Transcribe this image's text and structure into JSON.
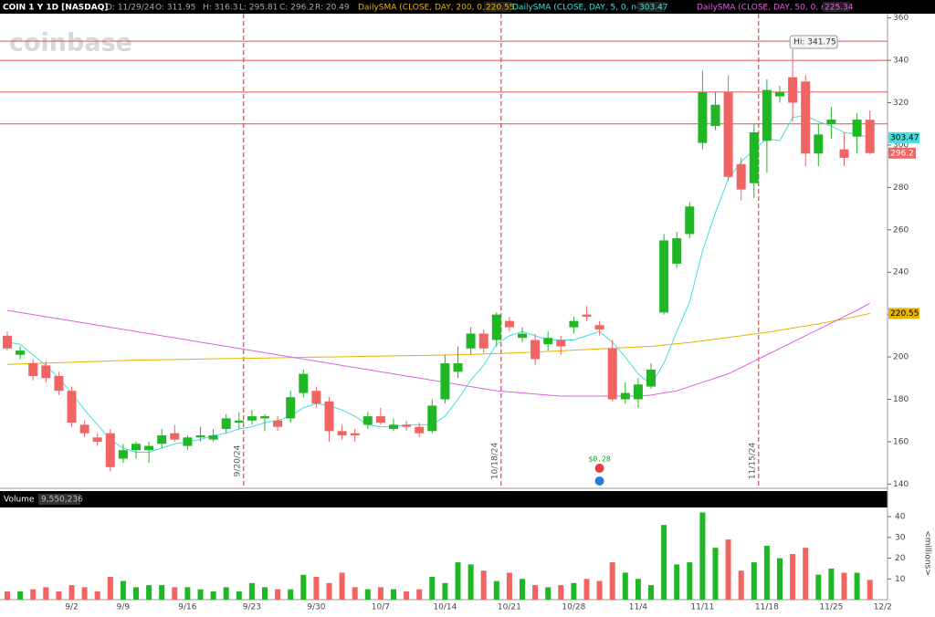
{
  "header": {
    "symbol": "COIN 1 Y 1D [NASDAQ]",
    "date": "D: 11/29/24",
    "open": "O: 311.95",
    "high": "H: 316.3",
    "low": "L: 295.81",
    "close": "C: 296.2",
    "range": "R: 20.49"
  },
  "watermark": "coinbase",
  "chart_data": {
    "type": "candlestick",
    "categories": [
      null,
      null,
      null,
      null,
      null,
      "9/2",
      null,
      null,
      null,
      "9/9",
      null,
      null,
      null,
      null,
      "9/16",
      null,
      null,
      null,
      null,
      "9/23",
      null,
      null,
      null,
      null,
      "9/30",
      null,
      null,
      null,
      null,
      "10/7",
      null,
      null,
      null,
      null,
      "10/14",
      null,
      null,
      null,
      null,
      "10/21",
      null,
      null,
      null,
      null,
      "10/28",
      null,
      null,
      null,
      null,
      "11/4",
      null,
      null,
      null,
      null,
      "11/11",
      null,
      null,
      null,
      null,
      "11/18",
      null,
      null,
      null,
      null,
      "11/25",
      null,
      null,
      null,
      "12/2"
    ],
    "open": [
      210,
      201,
      197,
      196,
      191,
      184,
      168,
      162,
      164,
      152,
      156,
      156,
      159,
      164,
      158,
      162,
      161,
      166,
      169,
      170,
      171,
      170,
      171,
      183,
      184,
      179,
      165,
      164,
      168,
      172,
      166,
      168,
      167,
      165,
      180,
      193,
      204,
      211,
      208,
      217,
      209,
      208,
      206,
      208,
      214,
      220,
      215,
      204,
      180,
      180,
      186,
      221,
      244,
      258,
      301,
      309,
      325,
      291,
      282,
      302,
      323,
      332,
      330,
      296,
      310,
      298,
      304,
      311.95,
      null
    ],
    "high": [
      212,
      205,
      199,
      198,
      193,
      186,
      170,
      164,
      166,
      159,
      160,
      160,
      166,
      168,
      163,
      167,
      166,
      173,
      174,
      175,
      173,
      172,
      184,
      194,
      186,
      181,
      168,
      166,
      174,
      176,
      171,
      170,
      169,
      180,
      201,
      205,
      214,
      213,
      221,
      219,
      214,
      211,
      212,
      210,
      219,
      224,
      217,
      208,
      188,
      190,
      197,
      258,
      259,
      273,
      335,
      325,
      333,
      294,
      310,
      331,
      328,
      341.75,
      333,
      310,
      318,
      306,
      315,
      316.3,
      null
    ],
    "low": [
      203,
      199,
      189,
      188,
      182,
      167,
      162,
      158,
      146,
      150,
      152,
      150,
      157,
      160,
      156,
      160,
      160,
      164,
      166,
      168,
      165,
      165,
      169,
      181,
      176,
      160,
      161,
      160,
      166,
      168,
      165,
      165,
      162,
      164,
      178,
      190,
      201,
      202,
      205,
      212,
      207,
      196,
      203,
      201,
      211,
      217,
      210,
      179,
      178,
      176,
      185,
      220,
      242,
      256,
      298,
      307,
      283,
      274,
      275,
      287,
      320,
      311,
      290,
      290,
      303,
      290,
      296,
      295.81,
      null
    ],
    "close": [
      204,
      203,
      191,
      190,
      184,
      169,
      164,
      160,
      148,
      156,
      159,
      158,
      163,
      161,
      162,
      163,
      163,
      171,
      170,
      172,
      172,
      167,
      181,
      192,
      178,
      165,
      163,
      163,
      172,
      169,
      168,
      167,
      164,
      177,
      197,
      197,
      211,
      204,
      220,
      214,
      211,
      199,
      209,
      205,
      217,
      219,
      213,
      180,
      183,
      187,
      194,
      255,
      256,
      271,
      325,
      319,
      285,
      279,
      306,
      326,
      325,
      320,
      296,
      305,
      312,
      294,
      312,
      296.2,
      null
    ],
    "up_color": "#1fb824",
    "down_color": "#f06464",
    "ylim": [
      138,
      362
    ],
    "yticks": [
      140,
      160,
      180,
      200,
      220,
      240,
      260,
      280,
      300,
      320,
      340,
      360
    ],
    "series": [
      {
        "name": "DailySMA (CLOSE, DAY, 200, 0, no)",
        "color": "#e8b400",
        "values": [
          196.5,
          196.7,
          196.9,
          197.1,
          197.3,
          197.5,
          197.7,
          197.9,
          198.1,
          198.3,
          198.5,
          198.6,
          198.7,
          198.8,
          198.9,
          199.0,
          199.1,
          199.2,
          199.3,
          199.4,
          199.5,
          199.6,
          199.7,
          199.8,
          199.9,
          200.0,
          200.1,
          200.2,
          200.3,
          200.4,
          200.5,
          200.6,
          200.7,
          200.8,
          200.9,
          201.0,
          201.2,
          201.4,
          201.6,
          201.8,
          202.0,
          202.3,
          202.6,
          202.9,
          203.2,
          203.5,
          203.8,
          204.1,
          204.4,
          204.7,
          205.0,
          205.6,
          206.2,
          206.8,
          207.6,
          208.4,
          209.2,
          210.0,
          210.8,
          211.6,
          212.6,
          213.6,
          214.6,
          215.6,
          216.8,
          217.9,
          219.2,
          220.55,
          null
        ]
      },
      {
        "name": "DailySMA (CLOSE, DAY, 5, 0, no)",
        "color": "#45dede",
        "values": [
          207,
          206,
          201,
          196,
          190,
          183,
          175,
          168,
          161,
          157,
          155,
          155,
          157,
          159,
          160,
          161,
          163,
          164,
          166,
          167,
          169,
          170,
          172,
          176,
          178,
          177,
          175,
          172,
          168,
          167,
          167,
          168,
          168,
          168,
          172,
          180,
          189,
          196,
          206,
          210,
          212,
          210,
          208,
          208,
          208,
          210,
          212,
          207,
          200,
          192,
          187,
          197,
          212,
          226,
          250,
          268,
          284,
          292,
          298,
          303,
          302,
          313,
          314,
          311,
          309,
          306,
          305,
          303.47,
          null
        ]
      },
      {
        "name": "DailySMA (CLOSE, DAY, 50, 0, no)",
        "color": "#e060e0",
        "values": [
          222,
          221,
          220,
          219,
          218,
          217,
          216,
          215,
          214,
          213,
          212,
          211,
          210,
          209,
          208,
          207,
          206,
          205,
          204,
          203,
          202,
          201,
          200,
          199,
          198,
          197,
          196,
          195,
          194,
          193,
          192,
          191,
          190,
          189,
          188,
          187,
          186,
          185,
          184,
          183.5,
          183,
          182.5,
          182,
          181.5,
          181.5,
          181.5,
          181.5,
          181.5,
          181.5,
          181.5,
          182,
          183,
          184,
          186,
          188,
          190,
          192,
          195,
          198,
          201,
          204,
          207,
          210,
          213,
          216,
          219,
          222,
          225.34,
          null
        ]
      }
    ],
    "hlines": [
      349,
      340,
      325,
      310
    ],
    "hline_color": "#e05050",
    "vlines": [
      {
        "at": 18,
        "label": "9/20/24"
      },
      {
        "at": 38,
        "label": "10/18/24"
      },
      {
        "at": 58,
        "label": "11/15/24"
      }
    ],
    "high_label": "Hi: 341.75",
    "earnings": {
      "at": 46,
      "label": "$0.28"
    },
    "volume": {
      "label": "Volume",
      "total_label": "9,550,236",
      "unit_label": "<millions>",
      "ylim": [
        0,
        44
      ],
      "yticks": [
        10,
        20,
        30,
        40
      ],
      "values": [
        4,
        4,
        5,
        6,
        4,
        7,
        6,
        4,
        11,
        9,
        6,
        7,
        7,
        6,
        6,
        5,
        4,
        6,
        4,
        8,
        6,
        5,
        5,
        12,
        11,
        8,
        13,
        6,
        5,
        6,
        5,
        4,
        5,
        11,
        8,
        18,
        17,
        14,
        9,
        13,
        10,
        7,
        6,
        7,
        8,
        10,
        9,
        18,
        13,
        10,
        7,
        36,
        17,
        18,
        42,
        25,
        29,
        14,
        18,
        26,
        20,
        22,
        25,
        12,
        15,
        13,
        13,
        9.55,
        null
      ]
    }
  }
}
